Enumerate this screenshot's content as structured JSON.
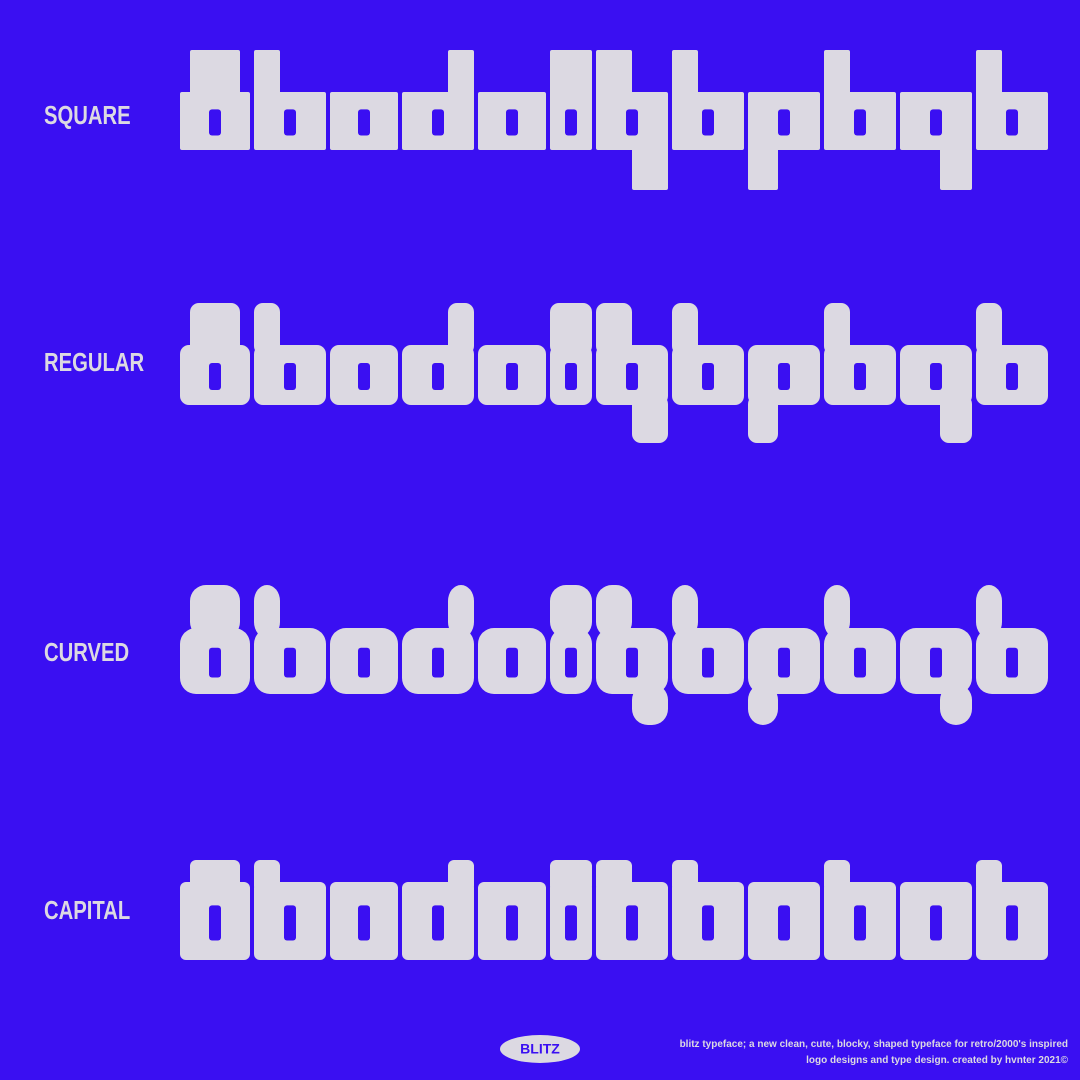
{
  "labels": [
    "SQUARE",
    "REGULAR",
    "CURVED",
    "CAPITAL"
  ],
  "logo": "BLITZ",
  "footer": {
    "lines": [
      "blitz typeface; a new clean, cute, blocky, shaped typeface for retro/2000's inspired",
      "logo designs and type design. created by hvnter 2021©"
    ]
  }
}
